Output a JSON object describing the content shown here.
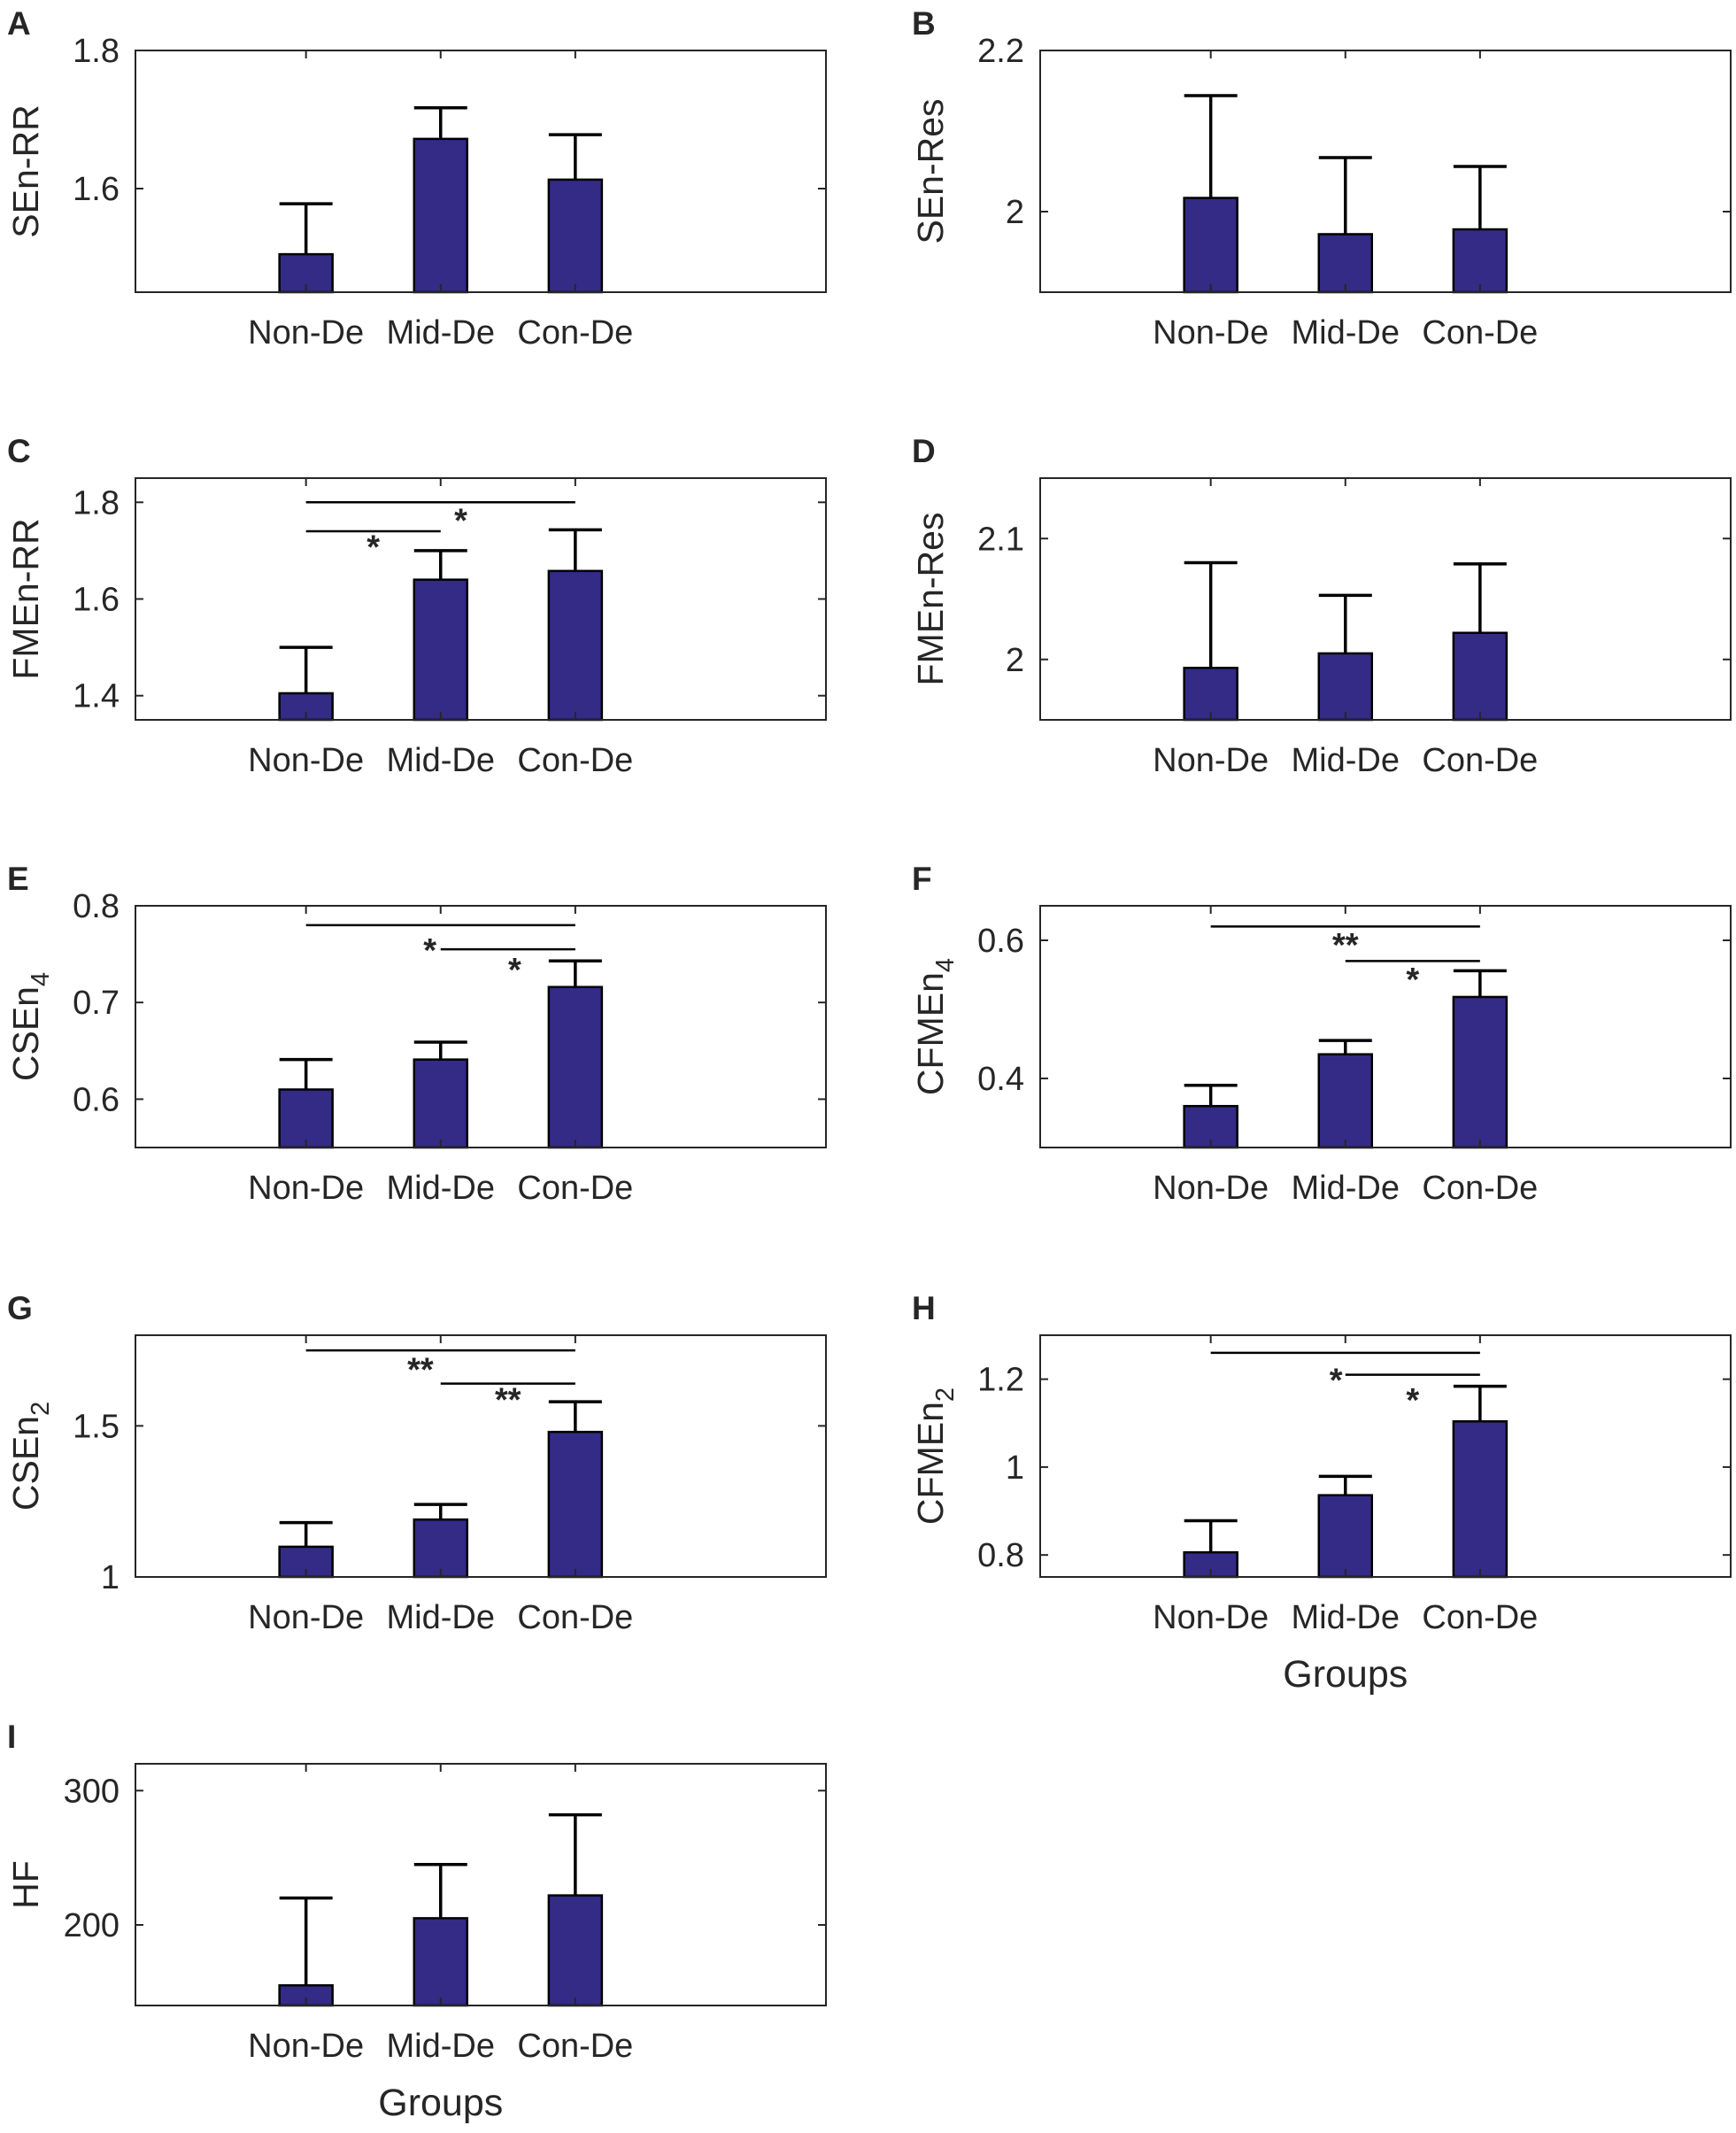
{
  "figure": {
    "bar_color": "#332B85"
  },
  "chart_data": [
    {
      "id": "A",
      "type": "bar",
      "panel_label": "A",
      "ylabel": "SEn-RR",
      "ylabel_sub": "",
      "xlabel": "",
      "categories": [
        "Non-De",
        "Mid-De",
        "Con-De"
      ],
      "values": [
        1.505,
        1.672,
        1.613
      ],
      "errors": [
        0.073,
        0.045,
        0.065
      ],
      "ylim": [
        1.45,
        1.8
      ],
      "yticks": [
        1.6,
        1.8
      ],
      "ytick_labels": [
        "1.6",
        "1.8"
      ],
      "significance": []
    },
    {
      "id": "B",
      "type": "bar",
      "panel_label": "B",
      "ylabel": "SEn-Res",
      "ylabel_sub": "",
      "xlabel": "",
      "categories": [
        "Non-De",
        "Mid-De",
        "Con-De"
      ],
      "values": [
        2.017,
        1.972,
        1.978
      ],
      "errors": [
        0.127,
        0.095,
        0.078
      ],
      "ylim": [
        1.9,
        2.2
      ],
      "yticks": [
        2.0,
        2.2
      ],
      "ytick_labels": [
        "2",
        "2.2"
      ],
      "significance": []
    },
    {
      "id": "C",
      "type": "bar",
      "panel_label": "C",
      "ylabel": "FMEn-RR",
      "ylabel_sub": "",
      "xlabel": "",
      "categories": [
        "Non-De",
        "Mid-De",
        "Con-De"
      ],
      "values": [
        1.405,
        1.64,
        1.658
      ],
      "errors": [
        0.095,
        0.06,
        0.085
      ],
      "ylim": [
        1.35,
        1.85
      ],
      "yticks": [
        1.4,
        1.6,
        1.8
      ],
      "ytick_labels": [
        "1.4",
        "1.6",
        "1.8"
      ],
      "significance": [
        {
          "from": 0,
          "to": 2,
          "y": 1.8,
          "label": "*",
          "label_x": 1.15,
          "label_y": 1.765
        },
        {
          "from": 0,
          "to": 1,
          "y": 1.74,
          "label": "*",
          "label_x": 0.5,
          "label_y": 1.71
        }
      ]
    },
    {
      "id": "D",
      "type": "bar",
      "panel_label": "D",
      "ylabel": "FMEn-Res",
      "ylabel_sub": "",
      "xlabel": "",
      "categories": [
        "Non-De",
        "Mid-De",
        "Con-De"
      ],
      "values": [
        1.993,
        2.005,
        2.022
      ],
      "errors": [
        0.087,
        0.048,
        0.057
      ],
      "ylim": [
        1.95,
        2.15
      ],
      "yticks": [
        2.0,
        2.1
      ],
      "ytick_labels": [
        "2",
        "2.1"
      ],
      "significance": []
    },
    {
      "id": "E",
      "type": "bar",
      "panel_label": "E",
      "ylabel": "CSEn",
      "ylabel_sub": "4",
      "xlabel": "",
      "categories": [
        "Non-De",
        "Mid-De",
        "Con-De"
      ],
      "values": [
        0.61,
        0.641,
        0.716
      ],
      "errors": [
        0.031,
        0.018,
        0.027
      ],
      "ylim": [
        0.55,
        0.8
      ],
      "yticks": [
        0.6,
        0.7,
        0.8
      ],
      "ytick_labels": [
        "0.6",
        "0.7",
        "0.8"
      ],
      "significance": [
        {
          "from": 0,
          "to": 2,
          "y": 0.78,
          "label": "*",
          "label_x": 0.92,
          "label_y": 0.755
        },
        {
          "from": 1,
          "to": 2,
          "y": 0.755,
          "label": "*",
          "label_x": 1.55,
          "label_y": 0.735
        }
      ]
    },
    {
      "id": "F",
      "type": "bar",
      "panel_label": "F",
      "ylabel": "CFMEn",
      "ylabel_sub": "4",
      "xlabel": "",
      "categories": [
        "Non-De",
        "Mid-De",
        "Con-De"
      ],
      "values": [
        0.36,
        0.435,
        0.518
      ],
      "errors": [
        0.03,
        0.02,
        0.038
      ],
      "ylim": [
        0.3,
        0.65
      ],
      "yticks": [
        0.4,
        0.6
      ],
      "ytick_labels": [
        "0.4",
        "0.6"
      ],
      "significance": [
        {
          "from": 0,
          "to": 2,
          "y": 0.62,
          "label": "**",
          "label_x": 1.0,
          "label_y": 0.595
        },
        {
          "from": 1,
          "to": 2,
          "y": 0.57,
          "label": "*",
          "label_x": 1.5,
          "label_y": 0.545
        }
      ]
    },
    {
      "id": "G",
      "type": "bar",
      "panel_label": "G",
      "ylabel": "CSEn",
      "ylabel_sub": "2",
      "xlabel": "",
      "categories": [
        "Non-De",
        "Mid-De",
        "Con-De"
      ],
      "values": [
        1.1,
        1.19,
        1.48
      ],
      "errors": [
        0.08,
        0.05,
        0.1
      ],
      "ylim": [
        1.0,
        1.8
      ],
      "yticks": [
        1.0,
        1.5
      ],
      "ytick_labels": [
        "1",
        "1.5"
      ],
      "significance": [
        {
          "from": 0,
          "to": 2,
          "y": 1.75,
          "label": "**",
          "label_x": 0.85,
          "label_y": 1.69
        },
        {
          "from": 1,
          "to": 2,
          "y": 1.64,
          "label": "**",
          "label_x": 1.5,
          "label_y": 1.59
        }
      ]
    },
    {
      "id": "H",
      "type": "bar",
      "panel_label": "H",
      "ylabel": "CFMEn",
      "ylabel_sub": "2",
      "xlabel": "Groups",
      "categories": [
        "Non-De",
        "Mid-De",
        "Con-De"
      ],
      "values": [
        0.806,
        0.936,
        1.104
      ],
      "errors": [
        0.072,
        0.043,
        0.08
      ],
      "ylim": [
        0.75,
        1.3
      ],
      "yticks": [
        0.8,
        1.0,
        1.2
      ],
      "ytick_labels": [
        "0.8",
        "1",
        "1.2"
      ],
      "significance": [
        {
          "from": 0,
          "to": 2,
          "y": 1.26,
          "label": "*",
          "label_x": 0.93,
          "label_y": 1.2
        },
        {
          "from": 1,
          "to": 2,
          "y": 1.21,
          "label": "*",
          "label_x": 1.5,
          "label_y": 1.155
        }
      ]
    },
    {
      "id": "I",
      "type": "bar",
      "panel_label": "I",
      "ylabel": "HF",
      "ylabel_sub": "",
      "xlabel": "Groups",
      "categories": [
        "Non-De",
        "Mid-De",
        "Con-De"
      ],
      "values": [
        155,
        205,
        222
      ],
      "errors": [
        65,
        40,
        60
      ],
      "ylim": [
        140,
        320
      ],
      "yticks": [
        200,
        300
      ],
      "ytick_labels": [
        "200",
        "300"
      ],
      "significance": []
    }
  ]
}
